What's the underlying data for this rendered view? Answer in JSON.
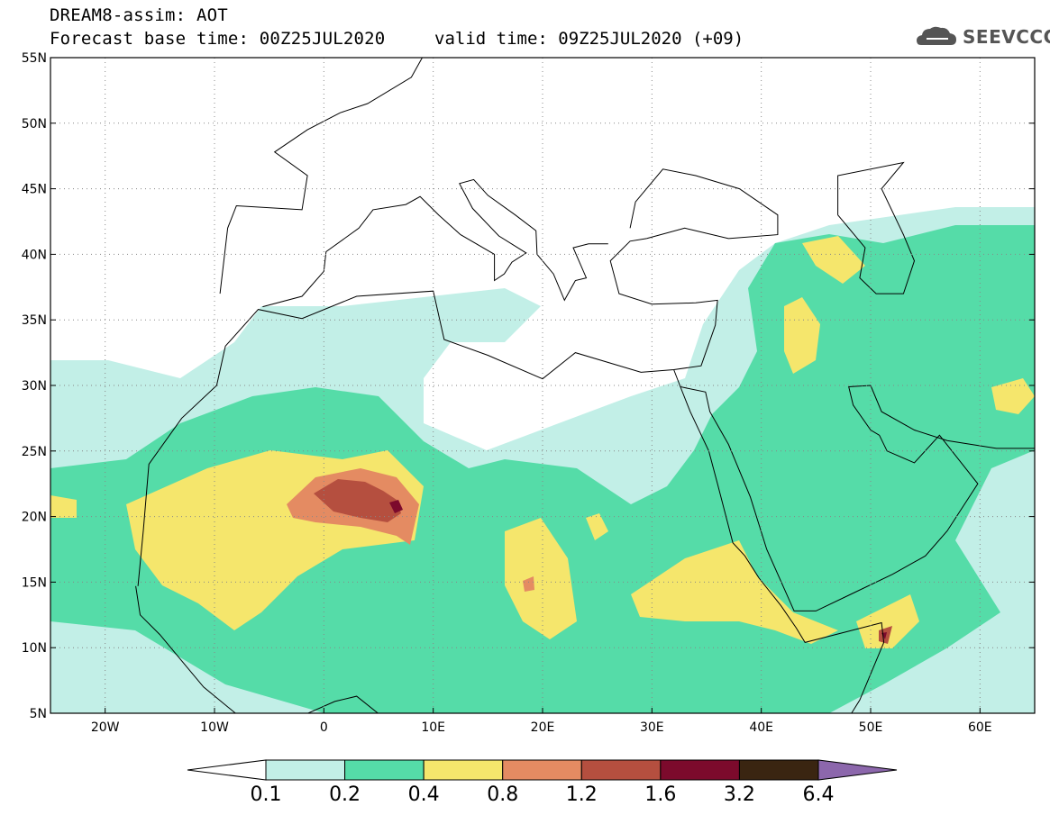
{
  "header": {
    "line1": "DREAM8-assim: AOT",
    "line2_left": "Forecast base time: 00Z25JUL2020",
    "line2_right": "valid time: 09Z25JUL2020 (+09)"
  },
  "logo": {
    "text": "SEEVCCC",
    "icon": "cloud-icon"
  },
  "map": {
    "lon_range": [
      -25,
      65
    ],
    "lat_range": [
      5,
      55
    ],
    "lat_ticks": [
      "5N",
      "10N",
      "15N",
      "20N",
      "25N",
      "30N",
      "35N",
      "40N",
      "45N",
      "50N",
      "55N"
    ],
    "lon_ticks": [
      "20W",
      "10W",
      "0",
      "10E",
      "20E",
      "30E",
      "40E",
      "50E",
      "60E"
    ],
    "variable": "AOT",
    "grid": "dotted"
  },
  "colorbar": {
    "thresholds": [
      "0.1",
      "0.2",
      "0.4",
      "0.8",
      "1.2",
      "1.6",
      "3.2",
      "6.4"
    ],
    "colors": [
      "#c2efe7",
      "#55dca8",
      "#f5e66c",
      "#e48b62",
      "#b54f3f",
      "#7c0a2c",
      "#3a2511",
      "#8c67ac"
    ],
    "under_color": "#ffffff"
  }
}
